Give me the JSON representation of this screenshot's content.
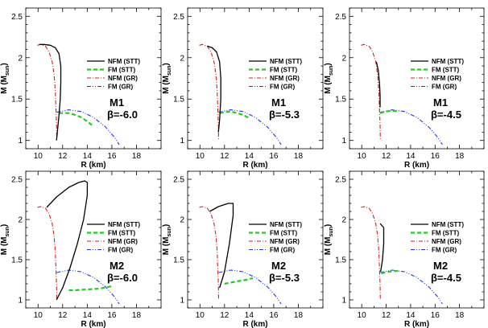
{
  "figure": {
    "panels": [
      {
        "id": "M1-6.0",
        "model": "M1",
        "beta": "β=-6.0"
      },
      {
        "id": "M1-5.3",
        "model": "M1",
        "beta": "β=-5.3"
      },
      {
        "id": "M1-4.5",
        "model": "M1",
        "beta": "β=-4.5"
      },
      {
        "id": "M2-6.0",
        "model": "M2",
        "beta": "β=-6.0"
      },
      {
        "id": "M2-5.3",
        "model": "M2",
        "beta": "β=-5.3"
      },
      {
        "id": "M2-4.5",
        "model": "M2",
        "beta": "β=-4.5"
      }
    ]
  },
  "colors": {
    "nfm_stt": "#000000",
    "fm_stt": "#22cc22",
    "nfm_gr": "#cc2222",
    "fm_gr": "#2233ee"
  },
  "chart_data": [
    {
      "type": "line",
      "title": "M1 β=-6.0",
      "xlabel": "R (km)",
      "ylabel_main": "M (M",
      "ylabel_sub": "sun",
      "ylabel_tail": ")",
      "xlim": [
        9,
        20
      ],
      "ylim": [
        0.9,
        2.6
      ],
      "xticks": [
        10,
        12,
        14,
        16,
        18
      ],
      "yticks": [
        1,
        1.5,
        2,
        2.5
      ],
      "legend": [
        "NFM (STT)",
        "FM (STT)",
        "NFM (GR)",
        "FM (GR)"
      ],
      "series": [
        {
          "name": "NFM (STT)",
          "x": [
            10.1,
            10.5,
            11.0,
            11.4,
            11.7,
            11.85,
            11.85,
            11.8,
            11.7,
            11.6,
            11.5
          ],
          "y": [
            2.16,
            2.16,
            2.15,
            2.12,
            2.05,
            1.9,
            1.7,
            1.5,
            1.3,
            1.15,
            1.0
          ]
        },
        {
          "name": "FM (STT)",
          "x": [
            11.7,
            12.5,
            13.0,
            13.5,
            14.0,
            14.5
          ],
          "y": [
            1.33,
            1.33,
            1.31,
            1.28,
            1.23,
            1.17
          ]
        },
        {
          "name": "NFM (GR)",
          "x": [
            9.95,
            10.2,
            10.6,
            10.9,
            11.15,
            11.3,
            11.4,
            11.45,
            11.5,
            11.52
          ],
          "y": [
            2.15,
            2.16,
            2.14,
            2.07,
            1.95,
            1.8,
            1.6,
            1.4,
            1.2,
            1.0
          ]
        },
        {
          "name": "FM (GR)",
          "x": [
            11.52,
            12.5,
            13.5,
            14.5,
            15.5,
            16.2,
            16.6
          ],
          "y": [
            1.34,
            1.37,
            1.35,
            1.28,
            1.16,
            1.04,
            0.95
          ]
        }
      ]
    },
    {
      "type": "line",
      "title": "M1 β=-5.3",
      "xlabel": "R (km)",
      "ylabel_main": "M (M",
      "ylabel_sub": "sun",
      "ylabel_tail": ")",
      "xlim": [
        9,
        20
      ],
      "ylim": [
        0.9,
        2.6
      ],
      "xticks": [
        10,
        12,
        14,
        16,
        18
      ],
      "yticks": [
        1,
        1.5,
        2,
        2.5
      ],
      "legend": [
        "NFM (STT)",
        "FM (STT)",
        "NFM (GR)",
        "FM (GR)"
      ],
      "series": [
        {
          "name": "NFM (STT)",
          "x": [
            10.6,
            11.0,
            11.35,
            11.6,
            11.7,
            11.7,
            11.6,
            11.5
          ],
          "y": [
            2.14,
            2.12,
            2.07,
            1.95,
            1.75,
            1.5,
            1.25,
            1.1
          ]
        },
        {
          "name": "FM (STT)",
          "x": [
            11.6,
            12.0,
            12.5,
            13.0,
            13.5,
            14.0
          ],
          "y": [
            1.33,
            1.34,
            1.35,
            1.33,
            1.31,
            1.27
          ]
        },
        {
          "name": "NFM (GR)",
          "x": [
            9.95,
            10.2,
            10.6,
            10.9,
            11.15,
            11.3,
            11.4,
            11.45,
            11.5,
            11.52
          ],
          "y": [
            2.15,
            2.16,
            2.14,
            2.07,
            1.95,
            1.8,
            1.6,
            1.4,
            1.2,
            1.0
          ]
        },
        {
          "name": "FM (GR)",
          "x": [
            11.52,
            12.5,
            13.5,
            14.5,
            15.5,
            16.2,
            16.6
          ],
          "y": [
            1.34,
            1.37,
            1.35,
            1.28,
            1.16,
            1.04,
            0.95
          ]
        }
      ]
    },
    {
      "type": "line",
      "title": "M1 β=-4.5",
      "xlabel": "R (km)",
      "ylabel_main": "M (M",
      "ylabel_sub": "sun",
      "ylabel_tail": ")",
      "xlim": [
        9,
        20
      ],
      "ylim": [
        0.9,
        2.6
      ],
      "xticks": [
        10,
        12,
        14,
        16,
        18
      ],
      "yticks": [
        1,
        1.5,
        2,
        2.5
      ],
      "legend": [
        "NFM (STT)",
        "FM (STT)",
        "NFM (GR)",
        "FM (GR)"
      ],
      "series": [
        {
          "name": "NFM (STT)",
          "x": [
            11.2,
            11.35,
            11.45,
            11.5,
            11.5
          ],
          "y": [
            1.95,
            1.85,
            1.7,
            1.55,
            1.4
          ]
        },
        {
          "name": "FM (STT)",
          "x": [
            11.5,
            12.0,
            12.5,
            13.0
          ],
          "y": [
            1.33,
            1.35,
            1.36,
            1.35
          ]
        },
        {
          "name": "NFM (GR)",
          "x": [
            9.95,
            10.2,
            10.6,
            10.9,
            11.15,
            11.3,
            11.4,
            11.45,
            11.5,
            11.52
          ],
          "y": [
            2.15,
            2.16,
            2.14,
            2.07,
            1.95,
            1.8,
            1.6,
            1.4,
            1.2,
            1.0
          ]
        },
        {
          "name": "FM (GR)",
          "x": [
            11.52,
            12.5,
            13.5,
            14.5,
            15.5,
            16.2,
            16.6
          ],
          "y": [
            1.34,
            1.37,
            1.35,
            1.28,
            1.16,
            1.04,
            0.95
          ]
        }
      ]
    },
    {
      "type": "line",
      "title": "M2 β=-6.0",
      "xlabel": "R (km)",
      "ylabel_main": "M (M",
      "ylabel_sub": "sun",
      "ylabel_tail": ")",
      "xlim": [
        9,
        20
      ],
      "ylim": [
        0.9,
        2.6
      ],
      "xticks": [
        10,
        12,
        14,
        16,
        18
      ],
      "yticks": [
        1,
        1.5,
        2,
        2.5
      ],
      "legend": [
        "NFM (STT)",
        "FM (STT)",
        "NFM (GR)",
        "FM (GR)"
      ],
      "series": [
        {
          "name": "NFM (STT)",
          "x": [
            10.7,
            11.5,
            12.5,
            13.3,
            13.8,
            14.0,
            14.0,
            13.7,
            13.2,
            12.6,
            12.0,
            11.6,
            11.5
          ],
          "y": [
            2.15,
            2.28,
            2.4,
            2.46,
            2.48,
            2.46,
            2.3,
            2.0,
            1.7,
            1.4,
            1.15,
            1.03,
            1.0
          ]
        },
        {
          "name": "FM (STT)",
          "x": [
            12.5,
            13.0,
            14.0,
            15.0,
            16.0
          ],
          "y": [
            1.12,
            1.12,
            1.13,
            1.14,
            1.17
          ]
        },
        {
          "name": "NFM (GR)",
          "x": [
            9.95,
            10.2,
            10.6,
            10.9,
            11.15,
            11.3,
            11.4,
            11.45,
            11.5,
            11.52
          ],
          "y": [
            2.15,
            2.16,
            2.14,
            2.07,
            1.95,
            1.8,
            1.6,
            1.4,
            1.2,
            1.0
          ]
        },
        {
          "name": "FM (GR)",
          "x": [
            11.52,
            12.5,
            13.5,
            14.5,
            15.5,
            16.2,
            16.6
          ],
          "y": [
            1.34,
            1.37,
            1.35,
            1.28,
            1.16,
            1.04,
            0.95
          ]
        }
      ]
    },
    {
      "type": "line",
      "title": "M2 β=-5.3",
      "xlabel": "R (km)",
      "ylabel_main": "M (M",
      "ylabel_sub": "sun",
      "ylabel_tail": ")",
      "xlim": [
        9,
        20
      ],
      "ylim": [
        0.9,
        2.6
      ],
      "xticks": [
        10,
        12,
        14,
        16,
        18
      ],
      "yticks": [
        1,
        1.5,
        2,
        2.5
      ],
      "legend": [
        "NFM (STT)",
        "FM (STT)",
        "NFM (GR)",
        "FM (GR)"
      ],
      "series": [
        {
          "name": "NFM (STT)",
          "x": [
            10.8,
            11.5,
            12.3,
            12.7,
            12.7,
            12.4,
            12.0,
            11.6
          ],
          "y": [
            2.1,
            2.16,
            2.2,
            2.2,
            2.05,
            1.7,
            1.35,
            1.15
          ]
        },
        {
          "name": "FM (STT)",
          "x": [
            12.0,
            13.0,
            13.8,
            14.3
          ],
          "y": [
            1.2,
            1.23,
            1.25,
            1.27
          ]
        },
        {
          "name": "NFM (GR)",
          "x": [
            9.95,
            10.2,
            10.6,
            10.9,
            11.15,
            11.3,
            11.4,
            11.45,
            11.5,
            11.52
          ],
          "y": [
            2.15,
            2.16,
            2.14,
            2.07,
            1.95,
            1.8,
            1.6,
            1.4,
            1.2,
            1.0
          ]
        },
        {
          "name": "FM (GR)",
          "x": [
            11.52,
            12.5,
            13.5,
            14.5,
            15.5,
            16.2,
            16.6
          ],
          "y": [
            1.34,
            1.37,
            1.35,
            1.28,
            1.16,
            1.04,
            0.95
          ]
        }
      ]
    },
    {
      "type": "line",
      "title": "M2 β=-4.5",
      "xlabel": "R (km)",
      "ylabel_main": "M (M",
      "ylabel_sub": "sun",
      "ylabel_tail": ")",
      "xlim": [
        9,
        20
      ],
      "ylim": [
        0.9,
        2.6
      ],
      "xticks": [
        10,
        12,
        14,
        16,
        18
      ],
      "yticks": [
        1,
        1.5,
        2,
        2.5
      ],
      "legend": [
        "NFM (STT)",
        "FM (STT)",
        "NFM (GR)",
        "FM (GR)"
      ],
      "series": [
        {
          "name": "NFM (STT)",
          "x": [
            11.5,
            11.8,
            11.8,
            11.7,
            11.55
          ],
          "y": [
            1.95,
            1.9,
            1.7,
            1.5,
            1.35
          ]
        },
        {
          "name": "FM (STT)",
          "x": [
            11.6,
            12.2,
            12.8,
            13.0
          ],
          "y": [
            1.33,
            1.35,
            1.36,
            1.36
          ]
        },
        {
          "name": "NFM (GR)",
          "x": [
            9.95,
            10.2,
            10.6,
            10.9,
            11.15,
            11.3,
            11.4,
            11.45,
            11.5,
            11.52
          ],
          "y": [
            2.15,
            2.16,
            2.14,
            2.07,
            1.95,
            1.8,
            1.6,
            1.4,
            1.2,
            1.0
          ]
        },
        {
          "name": "FM (GR)",
          "x": [
            11.52,
            12.5,
            13.5,
            14.5,
            15.5,
            16.2,
            16.6
          ],
          "y": [
            1.34,
            1.37,
            1.35,
            1.28,
            1.16,
            1.04,
            0.95
          ]
        }
      ]
    }
  ]
}
